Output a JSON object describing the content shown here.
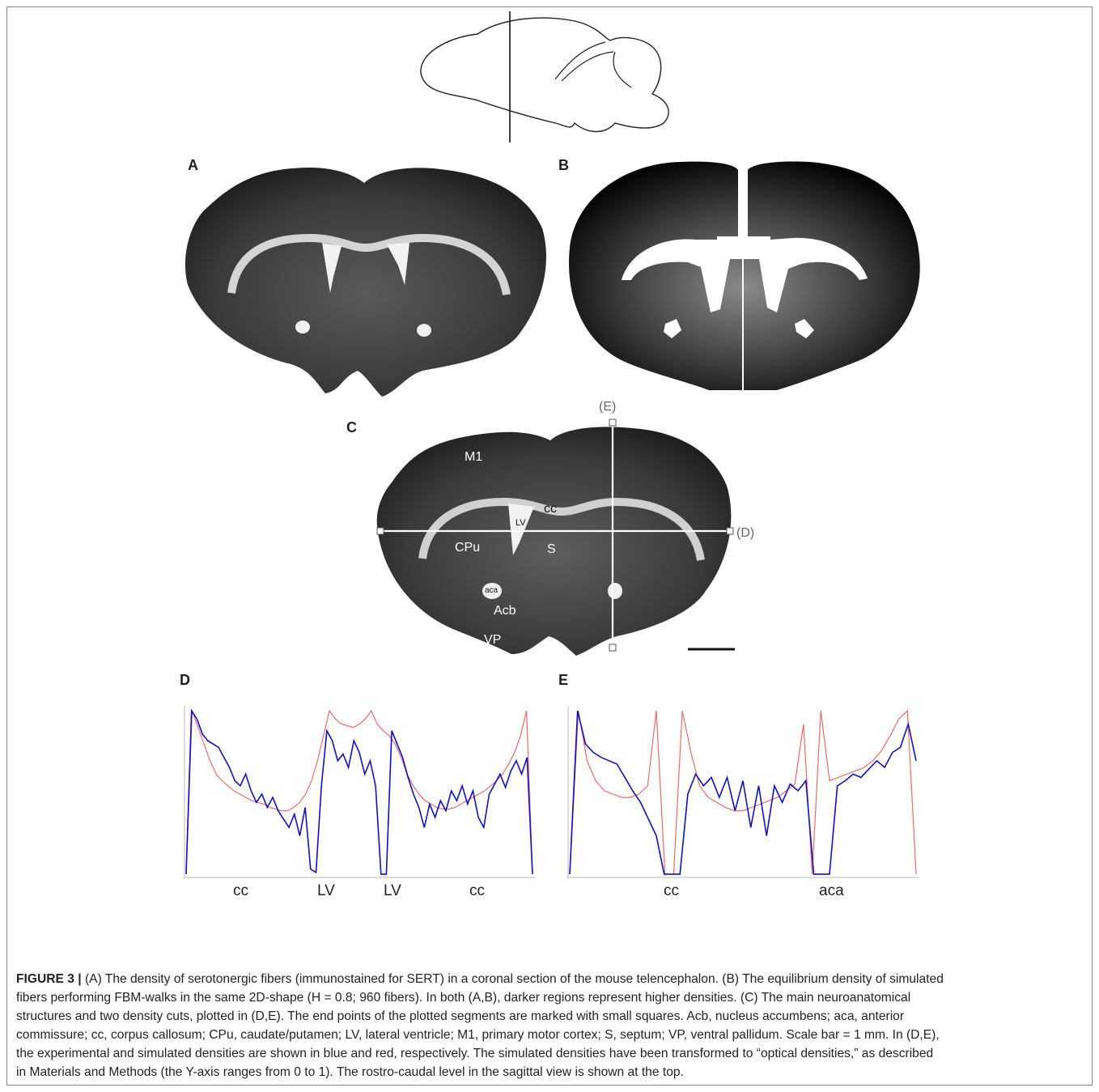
{
  "panels": {
    "A": "A",
    "B": "B",
    "C": "C",
    "D": "D",
    "E": "E"
  },
  "panel_c_labels": {
    "M1": "M1",
    "cc": "cc",
    "LV": "LV",
    "CPu": "CPu",
    "S": "S",
    "aca": "aca",
    "Acb": "Acb",
    "VP": "VP",
    "cut_E": "(E)",
    "cut_D": "(D)"
  },
  "chart_data": [
    {
      "panel": "D",
      "type": "line",
      "x_tick_labels": [
        "cc",
        "LV",
        "LV",
        "cc"
      ],
      "ylim": [
        0,
        1
      ],
      "series": [
        {
          "color": "#1010c8",
          "values": [
            0.02,
            1.0,
            0.95,
            0.86,
            0.82,
            0.8,
            0.78,
            0.72,
            0.66,
            0.58,
            0.55,
            0.62,
            0.52,
            0.45,
            0.5,
            0.42,
            0.48,
            0.4,
            0.35,
            0.3,
            0.38,
            0.25,
            0.42,
            0.05,
            0.03,
            0.55,
            0.88,
            0.82,
            0.7,
            0.74,
            0.66,
            0.82,
            0.75,
            0.62,
            0.7,
            0.55,
            0.02,
            0.02,
            0.88,
            0.8,
            0.72,
            0.6,
            0.5,
            0.42,
            0.3,
            0.44,
            0.36,
            0.46,
            0.4,
            0.52,
            0.46,
            0.55,
            0.44,
            0.52,
            0.36,
            0.3,
            0.5,
            0.56,
            0.62,
            0.54,
            0.64,
            0.7,
            0.62,
            0.72,
            0.02
          ]
        },
        {
          "color": "#f06a6a",
          "values": [
            0.02,
            1.0,
            0.9,
            0.8,
            0.7,
            0.62,
            0.58,
            0.55,
            0.52,
            0.5,
            0.48,
            0.46,
            0.45,
            0.44,
            0.42,
            0.41,
            0.4,
            0.4,
            0.42,
            0.45,
            0.5,
            0.58,
            0.7,
            0.85,
            1.0,
            0.95,
            0.92,
            0.91,
            0.9,
            0.92,
            0.95,
            1.0,
            0.92,
            0.88,
            0.85,
            0.8,
            0.72,
            0.62,
            0.55,
            0.5,
            0.46,
            0.44,
            0.42,
            0.41,
            0.41,
            0.42,
            0.44,
            0.46,
            0.48,
            0.5,
            0.52,
            0.55,
            0.58,
            0.62,
            0.68,
            0.75,
            0.85,
            1.0,
            0.02
          ]
        }
      ]
    },
    {
      "panel": "E",
      "type": "line",
      "x_tick_labels": [
        "cc",
        "aca"
      ],
      "ylim": [
        0,
        1
      ],
      "series": [
        {
          "color": "#1010c8",
          "values": [
            0.02,
            1.0,
            0.8,
            0.75,
            0.72,
            0.7,
            0.68,
            0.6,
            0.52,
            0.45,
            0.35,
            0.25,
            0.02,
            0.02,
            0.02,
            0.5,
            0.62,
            0.55,
            0.6,
            0.48,
            0.6,
            0.4,
            0.58,
            0.3,
            0.55,
            0.25,
            0.55,
            0.45,
            0.56,
            0.52,
            0.58,
            0.02,
            0.02,
            0.02,
            0.55,
            0.58,
            0.62,
            0.6,
            0.65,
            0.7,
            0.66,
            0.75,
            0.78,
            0.92,
            0.7
          ]
        },
        {
          "color": "#f06a6a",
          "values": [
            0.02,
            1.0,
            0.7,
            0.58,
            0.52,
            0.5,
            0.48,
            0.48,
            0.5,
            0.55,
            1.0,
            0.02,
            0.02,
            1.0,
            0.75,
            0.55,
            0.48,
            0.45,
            0.42,
            0.4,
            0.4,
            0.42,
            0.44,
            0.46,
            0.48,
            0.52,
            0.56,
            0.92,
            0.02,
            1.0,
            0.58,
            0.6,
            0.62,
            0.64,
            0.66,
            0.7,
            0.76,
            0.85,
            0.95,
            1.0,
            0.02
          ]
        }
      ]
    }
  ],
  "caption": {
    "figure_label": "FIGURE 3 |",
    "lines": [
      "(A) The density of serotonergic fibers (immunostained for SERT) in a coronal section of the mouse telencephalon. (B) The equilibrium density of simulated",
      "fibers performing FBM-walks in the same 2D-shape (H = 0.8; 960 fibers). In both (A,B), darker regions represent higher densities. (C) The main neuroanatomical",
      "structures and two density cuts, plotted in (D,E). The end points of the plotted segments are marked with small squares. Acb, nucleus accumbens; aca, anterior",
      "commissure; cc, corpus callosum; CPu, caudate/putamen; LV, lateral ventricle; M1, primary motor cortex; S, septum; VP, ventral pallidum. Scale bar = 1 mm. In (D,E),",
      "the experimental and simulated densities are shown in blue and red, respectively. The simulated densities have been transformed to “optical densities,” as described",
      "in Materials and Methods (the Y-axis ranges from 0 to 1). The rostro-caudal level in the sagittal view is shown at the top."
    ]
  }
}
